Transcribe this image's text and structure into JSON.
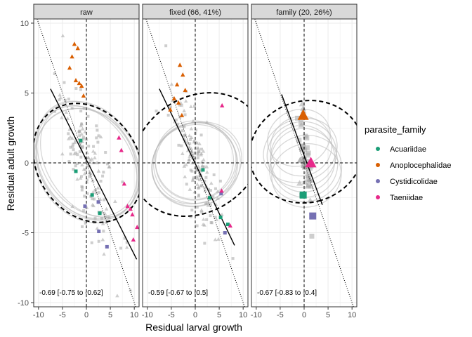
{
  "chart_data": {
    "type": "scatter",
    "xlabel": "Residual larval growth",
    "ylabel": "Residual adult growth",
    "xlim": [
      -11,
      11
    ],
    "ylim": [
      -10.3,
      10.3
    ],
    "x_ticks": [
      -10,
      -5,
      0,
      5,
      10
    ],
    "y_ticks": [
      -10,
      -5,
      0,
      5,
      10
    ],
    "x_tick_labels": [
      "-10",
      "-5",
      "0",
      "5",
      "10"
    ],
    "y_tick_labels": [
      "-10",
      "-5",
      "0",
      "5",
      "10"
    ],
    "grid": true,
    "legend": {
      "title": "parasite_family",
      "placement": "right",
      "entries": [
        {
          "name": "Acuariidae",
          "color": "#1b9e77"
        },
        {
          "name": "Anoplocephalidae",
          "color": "#d95f02"
        },
        {
          "name": "Cystidicolidae",
          "color": "#7570b3"
        },
        {
          "name": "Taeniidae",
          "color": "#e7298a"
        }
      ]
    },
    "colors": {
      "grey_points": "#a6a6a6",
      "grey_ellipse": "#bdbdbd",
      "panel_strip": "#d9d9d9",
      "grid": "#ebebeb"
    },
    "panels": [
      {
        "label": "raw",
        "annotation": "-0.69 [-0.75 to -0.62]",
        "regression": [
          [
            -7.5,
            5.3
          ],
          [
            10.5,
            -6.9
          ]
        ],
        "dashed_ellipse": {
          "cx": 0.3,
          "cy": 0,
          "rx": 13.2,
          "ry": 3.6,
          "angle_deg": -56
        },
        "grey_ellipses": [
          {
            "cx": 0.3,
            "cy": 0.2,
            "rx": 13.0,
            "ry": 3.5,
            "angle_deg": -57
          },
          {
            "cx": 0.2,
            "cy": 0.0,
            "rx": 12.8,
            "ry": 3.3,
            "angle_deg": -56
          },
          {
            "cx": 0.4,
            "cy": -0.2,
            "rx": 12.6,
            "ry": 3.6,
            "angle_deg": -55
          },
          {
            "cx": 0.1,
            "cy": 0.3,
            "rx": 12.9,
            "ry": 3.2,
            "angle_deg": -58
          },
          {
            "cx": 0.3,
            "cy": -0.1,
            "rx": 12.4,
            "ry": 3.4,
            "angle_deg": -56
          },
          {
            "cx": 0.5,
            "cy": 0.1,
            "rx": 12.7,
            "ry": 3.0,
            "angle_deg": -57
          }
        ],
        "family_points": [
          {
            "family": "Anoplocephalidae",
            "x": -2.5,
            "y": 8.5,
            "shape": "triangle"
          },
          {
            "family": "Anoplocephalidae",
            "x": -1.8,
            "y": 8.2,
            "shape": "triangle"
          },
          {
            "family": "Anoplocephalidae",
            "x": -3.0,
            "y": 7.6,
            "shape": "triangle"
          },
          {
            "family": "Anoplocephalidae",
            "x": -3.5,
            "y": 6.8,
            "shape": "triangle"
          },
          {
            "family": "Anoplocephalidae",
            "x": -1.5,
            "y": 5.7,
            "shape": "triangle"
          },
          {
            "family": "Anoplocephalidae",
            "x": -2.2,
            "y": 5.9,
            "shape": "triangle"
          },
          {
            "family": "Anoplocephalidae",
            "x": -1.0,
            "y": 5.5,
            "shape": "triangle"
          },
          {
            "family": "Anoplocephalidae",
            "x": -0.6,
            "y": 4.8,
            "shape": "triangle"
          },
          {
            "family": "Acuariidae",
            "x": -1.2,
            "y": 1.6,
            "shape": "square"
          },
          {
            "family": "Acuariidae",
            "x": -2.2,
            "y": -0.6,
            "shape": "square"
          },
          {
            "family": "Acuariidae",
            "x": 1.2,
            "y": -2.3,
            "shape": "square"
          },
          {
            "family": "Acuariidae",
            "x": 2.8,
            "y": -3.6,
            "shape": "square"
          },
          {
            "family": "Cystidicolidae",
            "x": 2.5,
            "y": -2.8,
            "shape": "square"
          },
          {
            "family": "Cystidicolidae",
            "x": -0.3,
            "y": -3.1,
            "shape": "square"
          },
          {
            "family": "Cystidicolidae",
            "x": 2.6,
            "y": -4.9,
            "shape": "square"
          },
          {
            "family": "Cystidicolidae",
            "x": 4.3,
            "y": -6.0,
            "shape": "square"
          },
          {
            "family": "Taeniidae",
            "x": 6.8,
            "y": 1.8,
            "shape": "triangle"
          },
          {
            "family": "Taeniidae",
            "x": 7.3,
            "y": 0.9,
            "shape": "triangle"
          },
          {
            "family": "Taeniidae",
            "x": 7.9,
            "y": -1.5,
            "shape": "triangle"
          },
          {
            "family": "Taeniidae",
            "x": 8.6,
            "y": -3.1,
            "shape": "triangle"
          },
          {
            "family": "Taeniidae",
            "x": 9.2,
            "y": -3.3,
            "shape": "triangle"
          },
          {
            "family": "Taeniidae",
            "x": 9.6,
            "y": -3.7,
            "shape": "triangle"
          },
          {
            "family": "Taeniidae",
            "x": 9.8,
            "y": -5.5,
            "shape": "triangle"
          },
          {
            "family": "Taeniidae",
            "x": 10.6,
            "y": -4.6,
            "shape": "triangle"
          }
        ]
      },
      {
        "label": "fixed (66, 41%)",
        "annotation": "-0.59 [-0.67 to -0.5]",
        "regression": [
          [
            -7.5,
            5.3
          ],
          [
            8.2,
            -5.9
          ]
        ],
        "dashed_ellipse": {
          "cx": 0.5,
          "cy": 0.6,
          "rx": 11.9,
          "ry": 5.0,
          "angle_deg": -54
        },
        "grey_ellipses": [
          {
            "cx": 0.0,
            "cy": 0.0,
            "rx": 8.4,
            "ry": 3.0,
            "angle_deg": -66
          },
          {
            "cx": -0.2,
            "cy": 0.2,
            "rx": 8.2,
            "ry": 2.8,
            "angle_deg": -68
          },
          {
            "cx": 0.2,
            "cy": -0.1,
            "rx": 8.6,
            "ry": 3.2,
            "angle_deg": -65
          },
          {
            "cx": 0.1,
            "cy": 0.1,
            "rx": 8.0,
            "ry": 2.9,
            "angle_deg": -67
          },
          {
            "cx": -0.1,
            "cy": -0.2,
            "rx": 8.5,
            "ry": 3.1,
            "angle_deg": -66
          },
          {
            "cx": 0.3,
            "cy": 0.0,
            "rx": 8.3,
            "ry": 3.3,
            "angle_deg": -64
          }
        ],
        "family_points": [
          {
            "family": "Anoplocephalidae",
            "x": -3.2,
            "y": 7.0,
            "shape": "triangle"
          },
          {
            "family": "Anoplocephalidae",
            "x": -2.6,
            "y": 6.3,
            "shape": "triangle"
          },
          {
            "family": "Anoplocephalidae",
            "x": -3.8,
            "y": 5.6,
            "shape": "triangle"
          },
          {
            "family": "Anoplocephalidae",
            "x": -2.1,
            "y": 5.2,
            "shape": "triangle"
          },
          {
            "family": "Anoplocephalidae",
            "x": -4.4,
            "y": 4.6,
            "shape": "triangle"
          },
          {
            "family": "Anoplocephalidae",
            "x": -3.5,
            "y": 4.3,
            "shape": "triangle"
          },
          {
            "family": "Anoplocephalidae",
            "x": -5.2,
            "y": 3.8,
            "shape": "triangle"
          },
          {
            "family": "Anoplocephalidae",
            "x": -2.8,
            "y": 3.4,
            "shape": "triangle"
          },
          {
            "family": "Acuariidae",
            "x": 1.6,
            "y": -0.5,
            "shape": "square"
          },
          {
            "family": "Acuariidae",
            "x": 3.0,
            "y": -2.5,
            "shape": "square"
          },
          {
            "family": "Acuariidae",
            "x": 5.3,
            "y": -3.9,
            "shape": "square"
          },
          {
            "family": "Acuariidae",
            "x": 6.8,
            "y": -4.4,
            "shape": "square"
          },
          {
            "family": "Cystidicolidae",
            "x": 5.4,
            "y": -2.2,
            "shape": "square"
          },
          {
            "family": "Cystidicolidae",
            "x": 6.2,
            "y": -5.0,
            "shape": "square"
          },
          {
            "family": "Taeniidae",
            "x": 5.6,
            "y": 4.1,
            "shape": "triangle"
          },
          {
            "family": "Taeniidae",
            "x": 5.5,
            "y": -2.0,
            "shape": "triangle"
          },
          {
            "family": "Taeniidae",
            "x": 7.3,
            "y": -4.5,
            "shape": "triangle"
          }
        ]
      },
      {
        "label": "family (20, 26%)",
        "annotation": "-0.67 [-0.83 to -0.4]",
        "regression": [
          [
            -4.7,
            4.9
          ],
          [
            3.8,
            -3.0
          ]
        ],
        "dashed_ellipse": {
          "cx": 0.5,
          "cy": 0.8,
          "rx": 10.6,
          "ry": 4.1,
          "angle_deg": -74
        },
        "grey_ellipses": [
          {
            "cx": -0.5,
            "cy": 0.6,
            "rx": 6.8,
            "ry": 2.5,
            "angle_deg": -70
          },
          {
            "cx": -0.3,
            "cy": 0.3,
            "rx": 7.0,
            "ry": 2.3,
            "angle_deg": -72
          },
          {
            "cx": -0.8,
            "cy": 0.9,
            "rx": 6.5,
            "ry": 2.7,
            "angle_deg": -68
          },
          {
            "cx": 0.0,
            "cy": 0.0,
            "rx": 7.2,
            "ry": 2.4,
            "angle_deg": -74
          },
          {
            "cx": -0.6,
            "cy": 1.2,
            "rx": 6.2,
            "ry": 2.2,
            "angle_deg": -66
          },
          {
            "cx": 0.3,
            "cy": -0.4,
            "rx": 6.9,
            "ry": 2.6,
            "angle_deg": -75
          },
          {
            "cx": -1.1,
            "cy": 1.8,
            "rx": 5.8,
            "ry": 2.3,
            "angle_deg": -64
          },
          {
            "cx": 0.5,
            "cy": -0.9,
            "rx": 6.6,
            "ry": 2.5,
            "angle_deg": -76
          }
        ],
        "family_points": [
          {
            "family": "Anoplocephalidae",
            "x": -0.2,
            "y": 3.4,
            "shape": "triangle"
          },
          {
            "family": "Taeniidae",
            "x": 1.4,
            "y": 0.0,
            "shape": "triangle"
          },
          {
            "family": "Acuariidae",
            "x": -0.2,
            "y": -2.3,
            "shape": "square"
          },
          {
            "family": "Cystidicolidae",
            "x": 1.8,
            "y": -3.8,
            "shape": "square"
          }
        ]
      }
    ]
  }
}
